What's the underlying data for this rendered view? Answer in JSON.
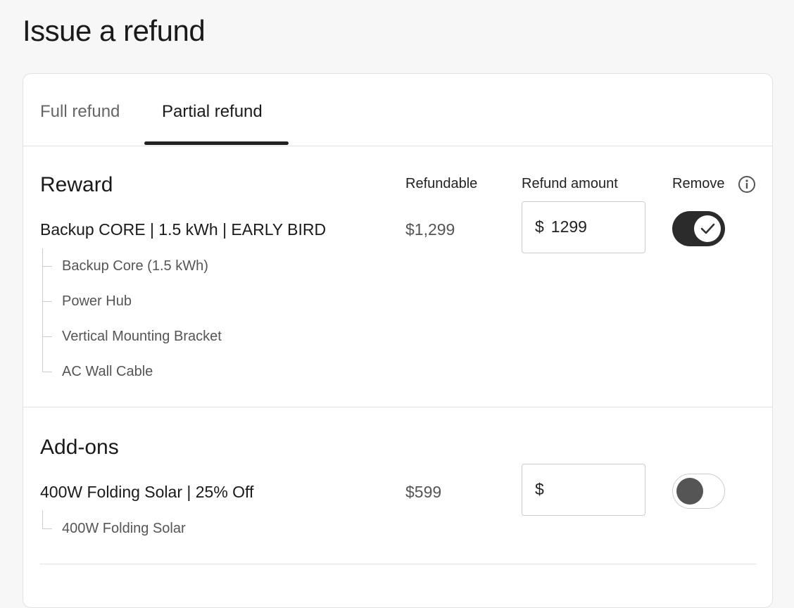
{
  "page": {
    "title": "Issue a refund"
  },
  "tabs": [
    {
      "label": "Full refund",
      "active": false
    },
    {
      "label": "Partial refund",
      "active": true
    }
  ],
  "columns": {
    "refundable": "Refundable",
    "refund_amount": "Refund amount",
    "remove": "Remove",
    "info_icon": "info-circle-icon"
  },
  "sections": [
    {
      "title": "Reward",
      "item": "Backup CORE | 1.5 kWh | EARLY BIRD",
      "refundable": "$1,299",
      "currency": "$",
      "amount": "1299",
      "remove": true,
      "components": [
        "Backup Core (1.5 kWh)",
        "Power Hub",
        "Vertical Mounting Bracket",
        "AC Wall Cable"
      ]
    },
    {
      "title": "Add-ons",
      "item": "400W Folding Solar | 25% Off",
      "refundable": "$599",
      "currency": "$",
      "amount": "",
      "remove": false,
      "components": [
        "400W Folding Solar"
      ]
    }
  ]
}
